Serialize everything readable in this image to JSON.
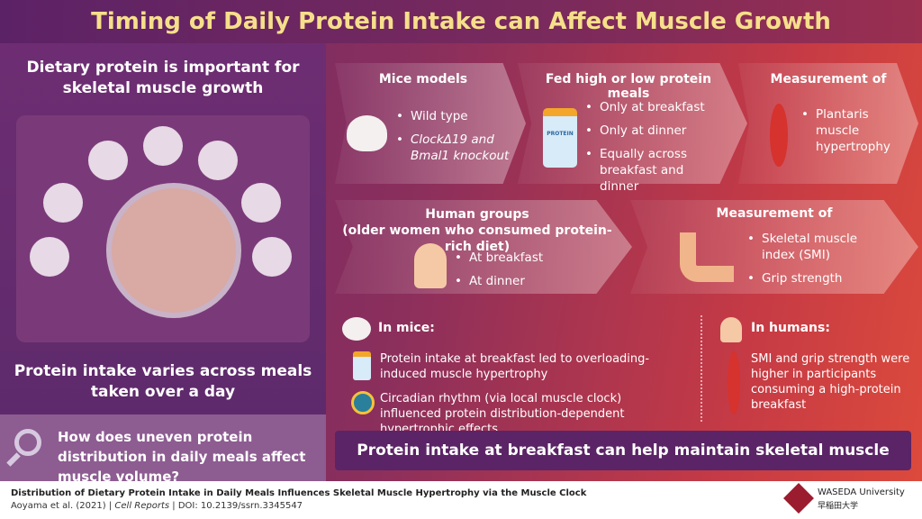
{
  "title": "Timing of Daily Protein Intake can Affect Muscle Growth",
  "left": {
    "heading": "Dietary protein is important for skeletal muscle growth",
    "subheading": "Protein intake varies across meals taken over a day",
    "question": "How does uneven protein distribution in daily meals affect muscle volume?"
  },
  "mice_row": {
    "models": {
      "title": "Mice models",
      "items": [
        "Wild type",
        "ClockΔ19 and",
        "Bmal1 knockout"
      ]
    },
    "fed": {
      "title": "Fed high or low protein meals",
      "bottle_label": "PROTEIN",
      "items": [
        "Only at breakfast",
        "Only at dinner",
        "Equally across breakfast and dinner"
      ]
    },
    "measure": {
      "title": "Measurement of",
      "items": [
        "Plantaris muscle hypertrophy"
      ]
    }
  },
  "human_row": {
    "groups": {
      "title": "Human groups",
      "subtitle": "(older women who consumed protein-rich diet)",
      "items": [
        "At breakfast",
        "At dinner"
      ]
    },
    "measure": {
      "title": "Measurement of",
      "items": [
        "Skeletal muscle index (SMI)",
        "Grip strength"
      ]
    }
  },
  "results": {
    "mice": {
      "title": "In mice:",
      "r1": "Protein intake at breakfast led to overloading-induced muscle hypertrophy",
      "r2": "Circadian rhythm (via local muscle clock) influenced protein distribution-dependent hypertrophic effects"
    },
    "humans": {
      "title": "In humans:",
      "r1": "SMI and grip strength were higher in participants consuming a high-protein breakfast"
    }
  },
  "conclusion": "Protein intake at breakfast can help maintain skeletal muscle mass",
  "footer": {
    "paper_title": "Distribution of Dietary Protein Intake in Daily Meals Influences Skeletal Muscle Hypertrophy via the Muscle Clock",
    "authors": "Aoyama et al. (2021)",
    "journal": "Cell Reports",
    "doi": "DOI: 10.2139/ssrn.3345547",
    "sep": "|",
    "university": "WASEDA University",
    "university_jp": "早稲田大学"
  },
  "colors": {
    "title_text": "#f6df8a",
    "accent_dark": "#5b2466",
    "accent_red": "#dc4a3c"
  }
}
